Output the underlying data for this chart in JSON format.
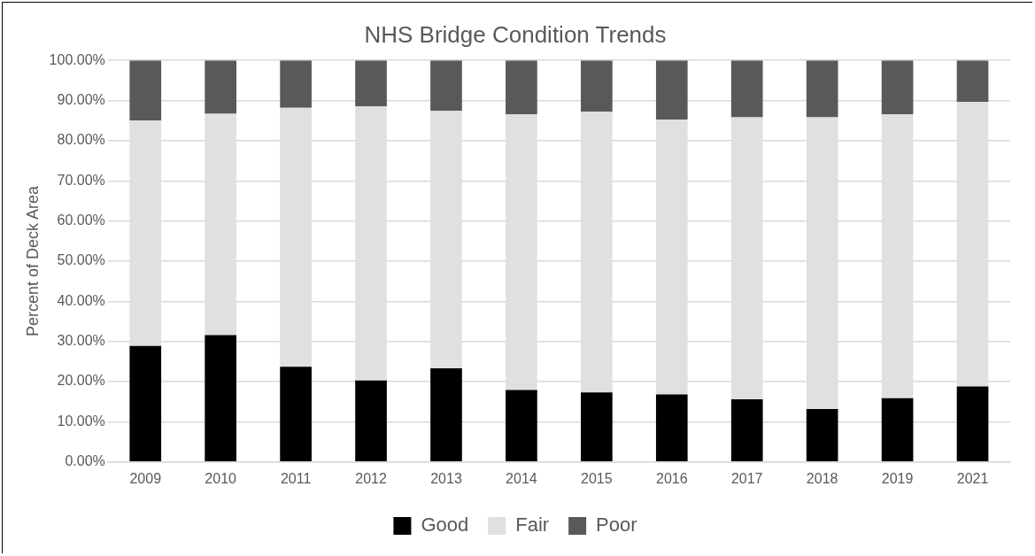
{
  "chart_data": {
    "type": "bar",
    "title": "NHS Bridge Condition Trends",
    "ylabel": "Percent of Deck Area",
    "categories": [
      "2009",
      "2010",
      "2011",
      "2012",
      "2013",
      "2014",
      "2015",
      "2016",
      "2017",
      "2018",
      "2019",
      "2021"
    ],
    "stacked": true,
    "series": [
      {
        "name": "Good",
        "color": "#000000",
        "values": [
          28.9,
          31.6,
          23.7,
          20.3,
          23.3,
          17.9,
          17.3,
          16.8,
          15.6,
          13.2,
          15.9,
          18.8
        ]
      },
      {
        "name": "Fair",
        "color": "#e0e0e0",
        "values": [
          56.1,
          55.1,
          64.5,
          68.2,
          64.1,
          68.7,
          69.9,
          68.5,
          70.2,
          72.6,
          70.7,
          70.9
        ]
      },
      {
        "name": "Poor",
        "color": "#595959",
        "values": [
          15.0,
          13.3,
          11.8,
          11.5,
          12.6,
          13.4,
          12.8,
          14.7,
          14.2,
          14.2,
          13.4,
          10.3
        ]
      }
    ],
    "ylim": [
      0,
      100
    ],
    "yticks": [
      {
        "value": 0,
        "label": "0.00%"
      },
      {
        "value": 10,
        "label": "10.00%"
      },
      {
        "value": 20,
        "label": "20.00%"
      },
      {
        "value": 30,
        "label": "30.00%"
      },
      {
        "value": 40,
        "label": "40.00%"
      },
      {
        "value": 50,
        "label": "50.00%"
      },
      {
        "value": 60,
        "label": "60.00%"
      },
      {
        "value": 70,
        "label": "70.00%"
      },
      {
        "value": 80,
        "label": "80.00%"
      },
      {
        "value": 90,
        "label": "90.00%"
      },
      {
        "value": 100,
        "label": "100.00%"
      }
    ],
    "grid": "y",
    "legend": "bottom"
  }
}
